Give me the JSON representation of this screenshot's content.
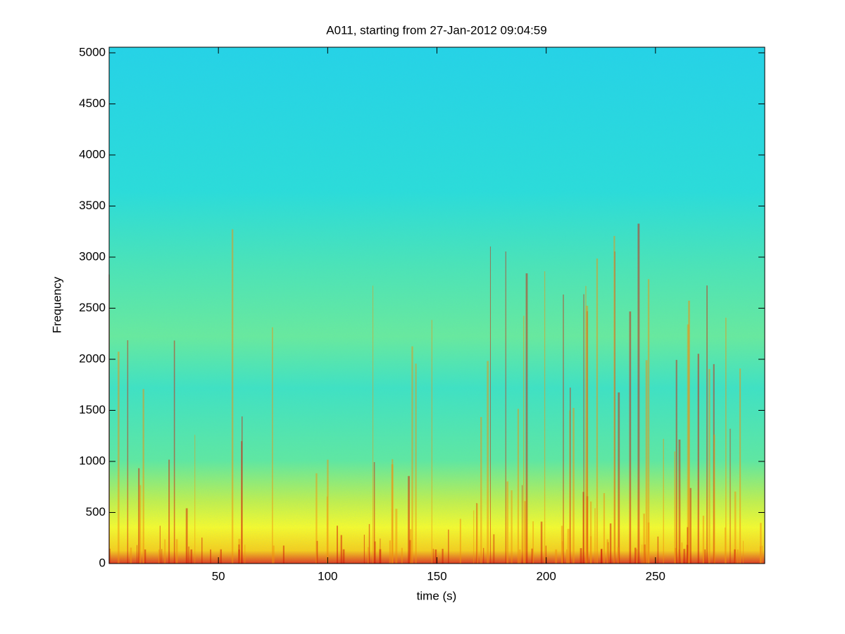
{
  "chart_data": {
    "type": "spectrogram",
    "title": "A011, starting from 27-Jan-2012 09:04:59",
    "x_label": "time (s)",
    "y_label": "Frequency",
    "xlim": [
      0,
      300
    ],
    "ylim": [
      0,
      5055
    ],
    "xticks": [
      50,
      100,
      150,
      200,
      250
    ],
    "yticks": [
      0,
      500,
      1000,
      1500,
      2000,
      2500,
      3000,
      3500,
      4000,
      4500,
      5000
    ]
  }
}
